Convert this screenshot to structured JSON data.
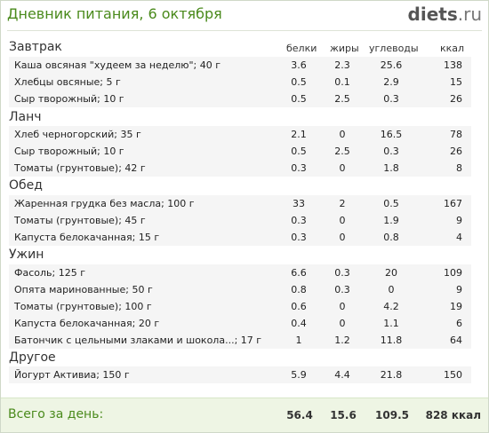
{
  "header": {
    "title": "Дневник питания, 6 октября",
    "logo_main": "diets",
    "logo_tld": ".ru"
  },
  "columns": {
    "protein": "белки",
    "fat": "жиры",
    "carbs": "углеводы",
    "kcal": "ккал"
  },
  "meals": [
    {
      "name": "Завтрак",
      "items": [
        {
          "name": "Каша овсяная \"худеем за неделю\"; 40 г",
          "protein": "3.6",
          "fat": "2.3",
          "carbs": "25.6",
          "kcal": "138"
        },
        {
          "name": "Хлебцы овсяные; 5 г",
          "protein": "0.5",
          "fat": "0.1",
          "carbs": "2.9",
          "kcal": "15"
        },
        {
          "name": "Сыр творожный; 10 г",
          "protein": "0.5",
          "fat": "2.5",
          "carbs": "0.3",
          "kcal": "26"
        }
      ]
    },
    {
      "name": "Ланч",
      "items": [
        {
          "name": "Хлеб черногорский; 35 г",
          "protein": "2.1",
          "fat": "0",
          "carbs": "16.5",
          "kcal": "78"
        },
        {
          "name": "Сыр творожный; 10 г",
          "protein": "0.5",
          "fat": "2.5",
          "carbs": "0.3",
          "kcal": "26"
        },
        {
          "name": "Томаты (грунтовые); 42 г",
          "protein": "0.3",
          "fat": "0",
          "carbs": "1.8",
          "kcal": "8"
        }
      ]
    },
    {
      "name": "Обед",
      "items": [
        {
          "name": "Жаренная грудка без масла; 100 г",
          "protein": "33",
          "fat": "2",
          "carbs": "0.5",
          "kcal": "167"
        },
        {
          "name": "Томаты (грунтовые); 45 г",
          "protein": "0.3",
          "fat": "0",
          "carbs": "1.9",
          "kcal": "9"
        },
        {
          "name": "Капуста белокачанная; 15 г",
          "protein": "0.3",
          "fat": "0",
          "carbs": "0.8",
          "kcal": "4"
        }
      ]
    },
    {
      "name": "Ужин",
      "items": [
        {
          "name": "Фасоль; 125 г",
          "protein": "6.6",
          "fat": "0.3",
          "carbs": "20",
          "kcal": "109"
        },
        {
          "name": "Опята маринованные; 50 г",
          "protein": "0.8",
          "fat": "0.3",
          "carbs": "0",
          "kcal": "9"
        },
        {
          "name": "Томаты (грунтовые); 100 г",
          "protein": "0.6",
          "fat": "0",
          "carbs": "4.2",
          "kcal": "19"
        },
        {
          "name": "Капуста белокачанная; 20 г",
          "protein": "0.4",
          "fat": "0",
          "carbs": "1.1",
          "kcal": "6"
        },
        {
          "name": "Батончик с цельными злаками и шокола...; 17 г",
          "protein": "1",
          "fat": "1.2",
          "carbs": "11.8",
          "kcal": "64"
        }
      ]
    },
    {
      "name": "Другое",
      "items": [
        {
          "name": "Йогурт Активиа; 150 г",
          "protein": "5.9",
          "fat": "4.4",
          "carbs": "21.8",
          "kcal": "150"
        }
      ]
    }
  ],
  "totals": {
    "label": "Всего за день:",
    "protein": "56.4",
    "fat": "15.6",
    "carbs": "109.5",
    "kcal": "828 ккал"
  },
  "colors": {
    "accent_green": "#4a8a1c",
    "row_bg": "#f5f5f5",
    "footer_bg": "#eef5e4"
  }
}
